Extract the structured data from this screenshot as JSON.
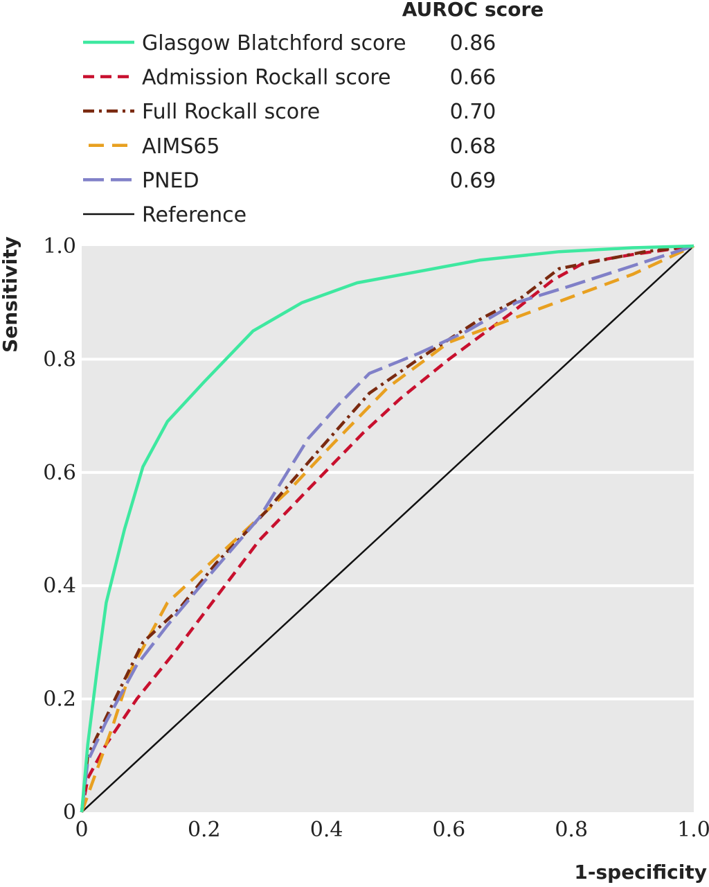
{
  "chart_data": {
    "type": "line",
    "xlabel": "1-specificity",
    "ylabel": "Sensitivity",
    "xlim": [
      0,
      1
    ],
    "ylim": [
      0,
      1
    ],
    "x_ticks": [
      "0",
      "0.2",
      "0.4",
      "0.6",
      "0.8",
      "1.0"
    ],
    "y_ticks": [
      "0",
      "0.2",
      "0.4",
      "0.6",
      "0.8",
      "1.0"
    ],
    "grid": true,
    "grid_color": "#ffffff",
    "plot_background": "#e8e8e8",
    "legend_header": "AUROC score",
    "legend_position": "top",
    "series": [
      {
        "name": "Glasgow Blatchford score",
        "score": "0.86",
        "color": "#3ee8a0",
        "dash": "solid",
        "points": [
          [
            0,
            0
          ],
          [
            0.01,
            0.12
          ],
          [
            0.025,
            0.25
          ],
          [
            0.04,
            0.37
          ],
          [
            0.07,
            0.5
          ],
          [
            0.1,
            0.61
          ],
          [
            0.14,
            0.69
          ],
          [
            0.2,
            0.76
          ],
          [
            0.28,
            0.85
          ],
          [
            0.36,
            0.9
          ],
          [
            0.45,
            0.935
          ],
          [
            0.55,
            0.955
          ],
          [
            0.65,
            0.975
          ],
          [
            0.78,
            0.99
          ],
          [
            0.9,
            0.997
          ],
          [
            1,
            1
          ]
        ]
      },
      {
        "name": "Admission Rockall score",
        "score": "0.66",
        "color": "#c8102e",
        "dash": "dash",
        "points": [
          [
            0,
            0
          ],
          [
            0.01,
            0.06
          ],
          [
            0.04,
            0.12
          ],
          [
            0.09,
            0.2
          ],
          [
            0.15,
            0.28
          ],
          [
            0.22,
            0.38
          ],
          [
            0.29,
            0.48
          ],
          [
            0.37,
            0.57
          ],
          [
            0.46,
            0.67
          ],
          [
            0.52,
            0.73
          ],
          [
            0.6,
            0.8
          ],
          [
            0.7,
            0.88
          ],
          [
            0.77,
            0.94
          ],
          [
            0.82,
            0.97
          ],
          [
            0.9,
            0.985
          ],
          [
            1,
            1
          ]
        ]
      },
      {
        "name": "Full Rockall score",
        "score": "0.70",
        "color": "#7a2a10",
        "dash": "dashdot",
        "points": [
          [
            0,
            0
          ],
          [
            0.01,
            0.1
          ],
          [
            0.05,
            0.19
          ],
          [
            0.1,
            0.3
          ],
          [
            0.16,
            0.36
          ],
          [
            0.22,
            0.44
          ],
          [
            0.3,
            0.53
          ],
          [
            0.38,
            0.63
          ],
          [
            0.47,
            0.74
          ],
          [
            0.55,
            0.8
          ],
          [
            0.65,
            0.87
          ],
          [
            0.72,
            0.91
          ],
          [
            0.78,
            0.96
          ],
          [
            0.85,
            0.975
          ],
          [
            0.92,
            0.99
          ],
          [
            1,
            1
          ]
        ]
      },
      {
        "name": "AIMS65",
        "score": "0.68",
        "color": "#e8a020",
        "dash": "longdash",
        "points": [
          [
            0,
            0
          ],
          [
            0.02,
            0.06
          ],
          [
            0.05,
            0.15
          ],
          [
            0.08,
            0.25
          ],
          [
            0.14,
            0.37
          ],
          [
            0.2,
            0.43
          ],
          [
            0.27,
            0.5
          ],
          [
            0.34,
            0.57
          ],
          [
            0.41,
            0.65
          ],
          [
            0.5,
            0.75
          ],
          [
            0.6,
            0.83
          ],
          [
            0.7,
            0.87
          ],
          [
            0.8,
            0.91
          ],
          [
            0.9,
            0.95
          ],
          [
            1,
            1
          ]
        ]
      },
      {
        "name": "PNED",
        "score": "0.69",
        "color": "#8080c8",
        "dash": "longdash2",
        "points": [
          [
            0,
            0
          ],
          [
            0.01,
            0.09
          ],
          [
            0.04,
            0.16
          ],
          [
            0.09,
            0.26
          ],
          [
            0.14,
            0.33
          ],
          [
            0.21,
            0.42
          ],
          [
            0.29,
            0.52
          ],
          [
            0.37,
            0.66
          ],
          [
            0.42,
            0.72
          ],
          [
            0.47,
            0.775
          ],
          [
            0.55,
            0.81
          ],
          [
            0.63,
            0.85
          ],
          [
            0.71,
            0.9
          ],
          [
            0.8,
            0.93
          ],
          [
            0.9,
            0.965
          ],
          [
            1,
            1
          ]
        ]
      },
      {
        "name": "Reference",
        "color": "#111111",
        "dash": "solid",
        "points": [
          [
            0,
            0
          ],
          [
            1,
            1
          ]
        ]
      }
    ]
  }
}
